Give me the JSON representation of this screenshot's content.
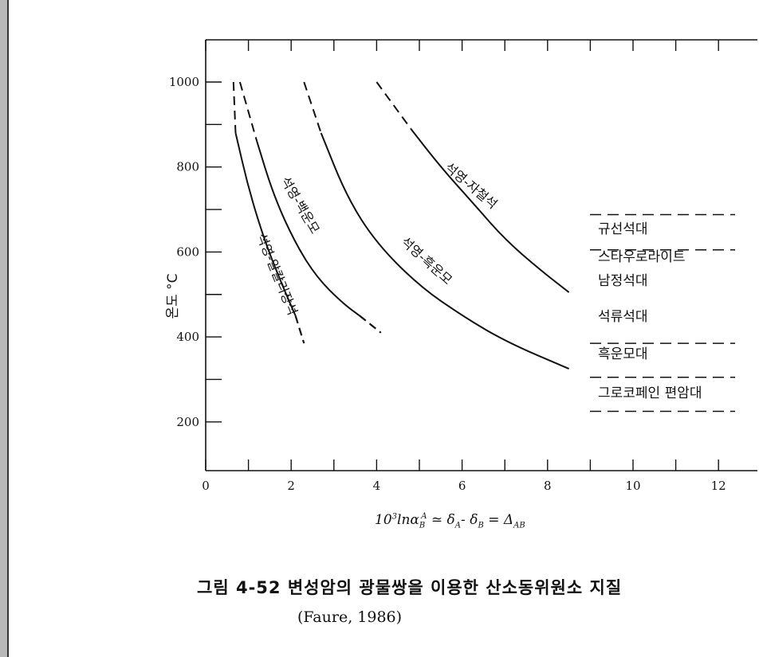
{
  "chart_data": {
    "type": "line",
    "ylabel": "온도 °C",
    "xlabel": "10³lnα_B^A ≃ δ_A - δ_B = Δ_AB",
    "xlim": [
      0,
      13
    ],
    "ylim": [
      100,
      1100
    ],
    "xticks": [
      0,
      2,
      4,
      6,
      8,
      10,
      12
    ],
    "yticks": [
      200,
      400,
      600,
      800,
      1000
    ],
    "series": [
      {
        "name": "석영-알칼리장석",
        "dashed": [
          [
            0.65,
            1000
          ],
          [
            0.7,
            880
          ]
        ],
        "points": [
          [
            0.7,
            880
          ],
          [
            1.0,
            750
          ],
          [
            1.4,
            620
          ],
          [
            1.8,
            520
          ],
          [
            2.1,
            450
          ]
        ],
        "dashed_end": [
          [
            2.1,
            450
          ],
          [
            2.3,
            385
          ]
        ]
      },
      {
        "name": "석영-백운모",
        "dashed": [
          [
            0.8,
            1000
          ],
          [
            1.2,
            860
          ]
        ],
        "points": [
          [
            1.2,
            860
          ],
          [
            1.6,
            730
          ],
          [
            2.1,
            620
          ],
          [
            2.6,
            540
          ],
          [
            3.2,
            480
          ],
          [
            3.6,
            450
          ]
        ],
        "dashed_end": [
          [
            3.6,
            450
          ],
          [
            4.1,
            410
          ]
        ]
      },
      {
        "name": "석영-흑운모",
        "dashed": [
          [
            2.3,
            1000
          ],
          [
            2.7,
            880
          ]
        ],
        "points": [
          [
            2.7,
            880
          ],
          [
            3.3,
            730
          ],
          [
            4.0,
            620
          ],
          [
            5.0,
            520
          ],
          [
            6.0,
            450
          ],
          [
            7.0,
            390
          ],
          [
            8.5,
            325
          ]
        ]
      },
      {
        "name": "석영-자철석",
        "dashed": [
          [
            4.0,
            1000
          ],
          [
            4.8,
            890
          ]
        ],
        "points": [
          [
            4.8,
            890
          ],
          [
            5.5,
            800
          ],
          [
            6.3,
            710
          ],
          [
            7.0,
            630
          ],
          [
            7.8,
            560
          ],
          [
            8.5,
            505
          ]
        ]
      }
    ],
    "zone_boundaries": [
      688,
      605,
      385,
      305,
      225
    ],
    "zones": [
      "규선석대",
      "스타우로라이트",
      "남정석대",
      "석류석대",
      "흑운모대",
      "그로코페인 편암대"
    ]
  },
  "caption": "그림 4-52  변성암의  광물쌍을  이용한  산소동위원소  지질",
  "caption_source": "(Faure, 1986)"
}
